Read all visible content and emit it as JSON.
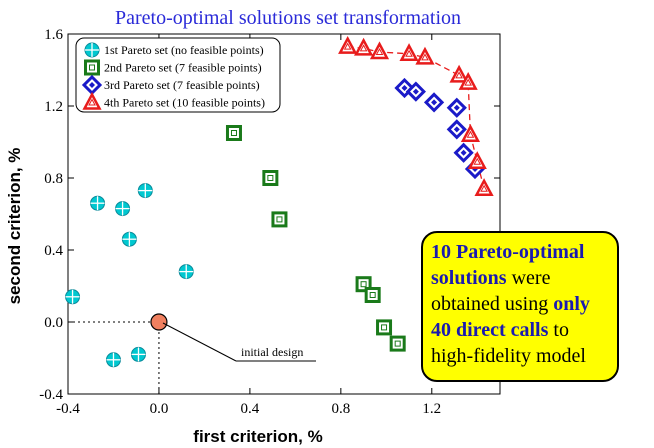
{
  "chart_data": {
    "type": "scatter",
    "title": "Pareto-optimal solutions set transformation",
    "xlabel": "first criterion,  %",
    "ylabel": "second criterion,  %",
    "xlim": [
      -0.4,
      1.5
    ],
    "ylim": [
      -0.4,
      1.6
    ],
    "xticks": [
      "-0.4",
      "0.0",
      "0.4",
      "0.8",
      "1.2"
    ],
    "xtick_values": [
      -0.4,
      0.0,
      0.4,
      0.8,
      1.2
    ],
    "yticks": [
      "-0.4",
      "0.0",
      "0.4",
      "0.8",
      "1.2",
      "1.6"
    ],
    "ytick_values": [
      -0.4,
      0.0,
      0.4,
      0.8,
      1.2,
      1.6
    ],
    "grid": false,
    "legend_position": "top-left",
    "series": [
      {
        "name": "1st Pareto set (no feasible points)",
        "marker": "circle-cross",
        "color": "#00c8d0",
        "points": [
          [
            -0.27,
            0.66
          ],
          [
            -0.06,
            0.73
          ],
          [
            -0.16,
            0.63
          ],
          [
            -0.13,
            0.46
          ],
          [
            0.12,
            0.28
          ],
          [
            -0.38,
            0.14
          ],
          [
            -0.2,
            -0.21
          ],
          [
            -0.09,
            -0.18
          ]
        ]
      },
      {
        "name": "2nd Pareto set (7 feasible points)",
        "marker": "square",
        "color": "#1a7a1a",
        "points": [
          [
            0.33,
            1.05
          ],
          [
            0.49,
            0.8
          ],
          [
            0.53,
            0.57
          ],
          [
            0.9,
            0.21
          ],
          [
            0.94,
            0.15
          ],
          [
            0.99,
            -0.03
          ],
          [
            1.05,
            -0.12
          ]
        ]
      },
      {
        "name": "3rd Pareto set (7 feasible points)",
        "marker": "diamond",
        "color": "#1a1ac8",
        "points": [
          [
            1.08,
            1.3
          ],
          [
            1.13,
            1.28
          ],
          [
            1.21,
            1.22
          ],
          [
            1.31,
            1.19
          ],
          [
            1.31,
            1.07
          ],
          [
            1.34,
            0.94
          ],
          [
            1.39,
            0.85
          ]
        ]
      },
      {
        "name": "4th Pareto set (10 feasible points)",
        "marker": "triangle",
        "color": "#e81c1c",
        "line": "dashed",
        "points": [
          [
            0.83,
            1.53
          ],
          [
            0.9,
            1.52
          ],
          [
            0.97,
            1.5
          ],
          [
            1.1,
            1.49
          ],
          [
            1.17,
            1.47
          ],
          [
            1.32,
            1.37
          ],
          [
            1.36,
            1.33
          ],
          [
            1.37,
            1.04
          ],
          [
            1.4,
            0.89
          ],
          [
            1.43,
            0.74
          ]
        ]
      }
    ],
    "initial_point": {
      "x": 0.0,
      "y": 0.0,
      "color": "#f08060"
    },
    "annotation": "initial design",
    "callout": {
      "p1": "10 Pareto-optimal solutions",
      "p2": " were obtained using ",
      "p3": "only 40 direct calls",
      "p4": " to high-fidelity model"
    }
  }
}
